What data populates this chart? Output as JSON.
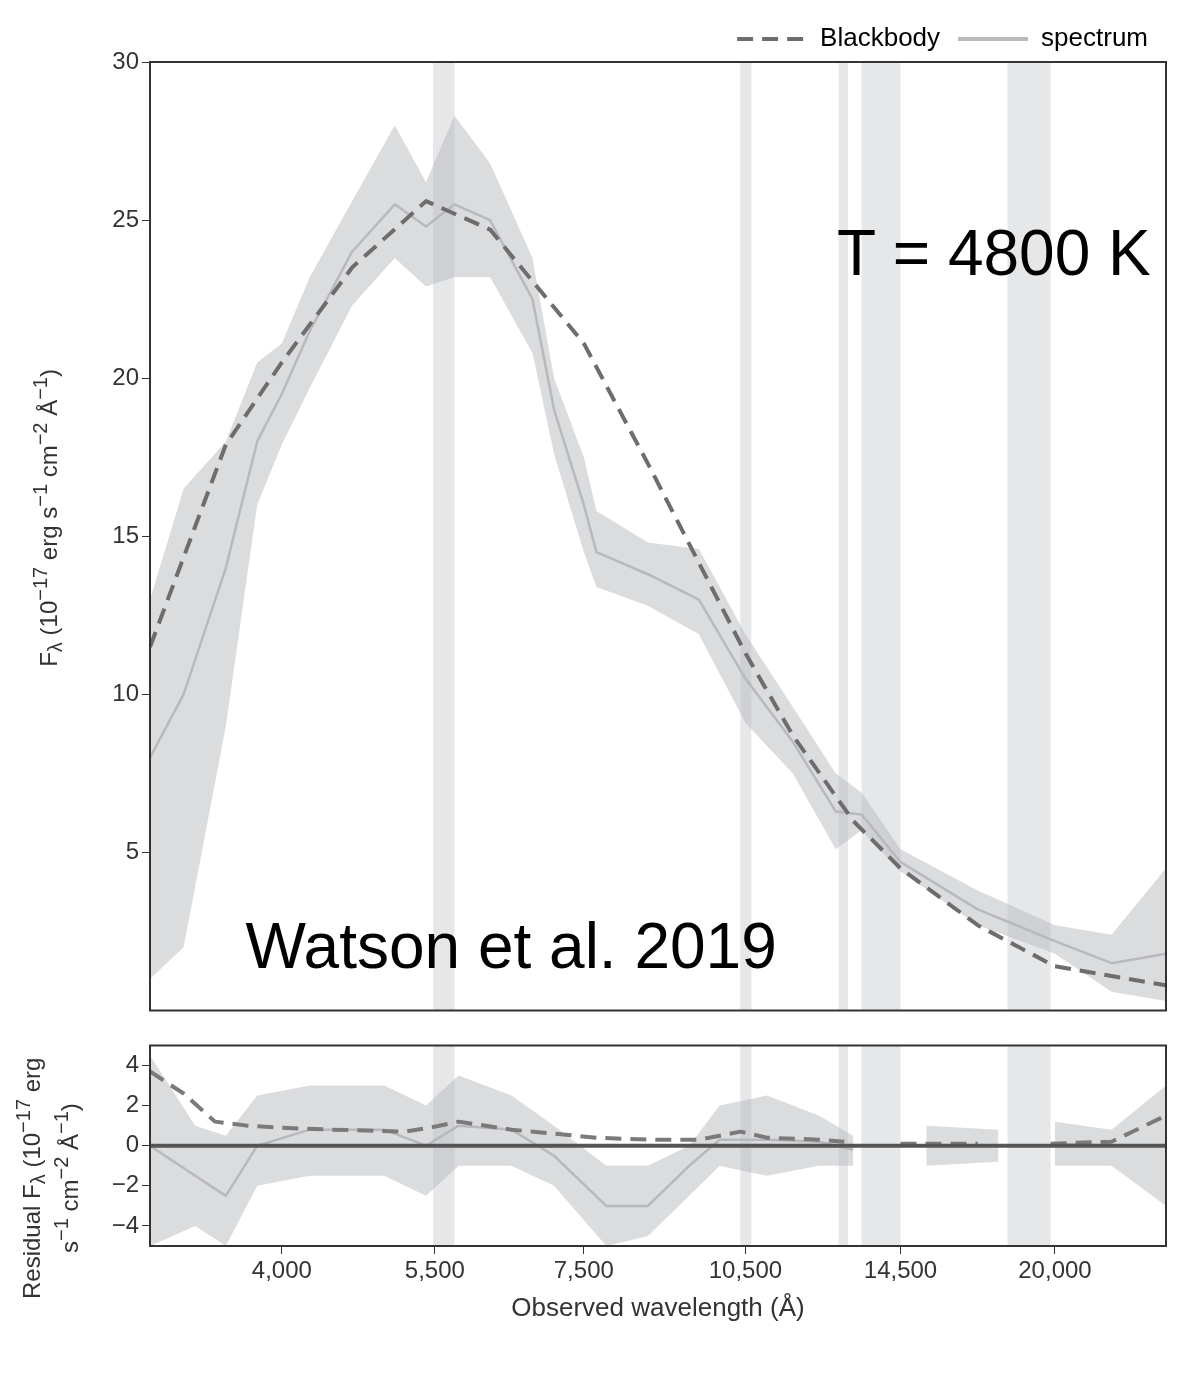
{
  "chart_data": [
    {
      "type": "line",
      "ylabel": "F$_{λ}$ (10$^{−17}$ erg s$^{−1}$ cm$^{−2}$ Å$^{−1}$)",
      "log": "x",
      "xlim": [
        3040,
        25200
      ],
      "ylim": [
        0,
        30
      ],
      "yticks": [
        5,
        10,
        15,
        20,
        25,
        30
      ],
      "tick_labels": "y",
      "grid": false,
      "legend": "top right",
      "marker": "none",
      "series": [
        {
          "name": "Blackbody",
          "color": "#6d6d6d",
          "line_style": "dashed",
          "x": [
            3040,
            3560,
            4000,
            4630,
            5400,
            6170,
            7500,
            8570,
            10500,
            11590,
            13140,
            14500,
            17030,
            20000,
            25200
          ],
          "values": [
            11.5,
            17.9,
            20.5,
            23.5,
            25.6,
            24.7,
            21.1,
            17.3,
            11.3,
            8.7,
            6.0,
            4.5,
            2.7,
            1.4,
            0.8
          ]
        },
        {
          "name": "spectrum",
          "color": "#b8b9bd",
          "line_style": "solid",
          "x": [
            3040,
            3260,
            3560,
            3800,
            4000,
            4240,
            4630,
            5060,
            5400,
            5730,
            6170,
            6740,
            7050,
            7500,
            7700,
            8570,
            9530,
            10500,
            11590,
            12670,
            13370,
            14500,
            17030,
            20000,
            22500,
            25200
          ],
          "values": [
            8,
            10,
            14,
            18,
            19.5,
            21.5,
            24,
            25.5,
            24.8,
            25.5,
            25,
            22.5,
            19,
            16,
            14.5,
            13.8,
            13,
            10.5,
            8.5,
            6.3,
            6.2,
            4.7,
            3.2,
            2.2,
            1.5,
            1.8
          ],
          "lower": [
            1,
            2,
            9,
            16,
            17.9,
            19.7,
            22.3,
            23.8,
            22.9,
            23.2,
            23.2,
            20.8,
            17.6,
            14.5,
            13.4,
            12.8,
            11.9,
            9.1,
            7.5,
            5.1,
            5.7,
            4.4,
            2.7,
            1.8,
            0.6,
            0.3
          ],
          "upper": [
            13,
            16.5,
            18,
            20.5,
            21.1,
            23.2,
            25.6,
            28,
            26.2,
            28.3,
            26.8,
            23.8,
            20,
            17.5,
            15.8,
            14.8,
            14.6,
            11.9,
            9.6,
            7.5,
            6.9,
            5.1,
            3.8,
            2.7,
            2.4,
            4.5
          ]
        }
      ],
      "bands": [
        {
          "axis": "x",
          "from": 5480,
          "to": 5730,
          "color": "#e6e7e9"
        },
        {
          "axis": "x",
          "from": 10390,
          "to": 10630,
          "color": "#e6e7e9"
        },
        {
          "axis": "x",
          "from": 12750,
          "to": 13000,
          "color": "#e6e7e9"
        },
        {
          "axis": "x",
          "from": 13370,
          "to": 14500,
          "color": "#e6e7e9"
        },
        {
          "axis": "x",
          "from": 18120,
          "to": 19820,
          "color": "#e6e7e9"
        }
      ],
      "annotations": [
        "T = 4800 K",
        "Watson et al. 2019"
      ]
    },
    {
      "type": "line",
      "xlabel": "Observed wavelength (Å)",
      "ylabel": "Residual F$_{λ}$ (10$^{−17}$ erg s$^{−1}$ cm$^{−2}$ Å$^{−1}$)",
      "log": "x",
      "xlim": [
        3040,
        25200
      ],
      "xticks": [
        {
          "value": 4000,
          "label": "4,000"
        },
        {
          "value": 5500,
          "label": "5,500"
        },
        {
          "value": 7500,
          "label": "7,500"
        },
        {
          "value": 10500,
          "label": "10,500"
        },
        {
          "value": 14500,
          "label": "14,500"
        },
        {
          "value": 20000,
          "label": "20,000"
        }
      ],
      "ylim": [
        -5,
        5
      ],
      "yticks": [
        {
          "value": -4,
          "label": "−4"
        },
        {
          "value": -2,
          "label": "−2"
        },
        0,
        2,
        4
      ],
      "grid": false,
      "marker": "none",
      "series": [
        {
          "color": "#7a7a7a",
          "line_style": "dashed",
          "x": [
            3040,
            3260,
            3480,
            3720,
            3970,
            4440,
            5170,
            5450,
            5780,
            6450,
            7050,
            7700,
            8570,
            9530,
            10390,
            10980,
            12230,
            12900,
            13370,
            14500,
            17030,
            18120,
            19820,
            22500,
            25200
          ],
          "values": [
            3.7,
            2.6,
            1.2,
            1.0,
            0.9,
            0.8,
            0.7,
            0.9,
            1.2,
            0.8,
            0.6,
            0.4,
            0.3,
            0.3,
            0.7,
            0.4,
            0.3,
            0.2,
            null,
            0.1,
            0.1,
            null,
            0.1,
            0.2,
            1.5
          ]
        },
        {
          "color": "#b8b9bd",
          "line_style": "solid",
          "x": [
            3040,
            3340,
            3560,
            3800,
            4240,
            4950,
            5400,
            5780,
            6450,
            7050,
            7860,
            8570,
            9340,
            9950,
            10980,
            12230,
            13140,
            13370,
            15300,
            17780,
            18120,
            20000,
            22500,
            25200
          ],
          "values": [
            0,
            -1.5,
            -2.5,
            0,
            0.8,
            0.8,
            0,
            1,
            0.8,
            -0.5,
            -3,
            -3,
            -1,
            0.3,
            0.3,
            0.2,
            -0.2,
            null,
            0,
            0,
            null,
            0.1,
            0,
            0
          ],
          "lower": [
            -5,
            -4,
            -5,
            -2,
            -1.5,
            -1.5,
            -2.5,
            -1,
            -1,
            -2,
            -5,
            -4.5,
            -2.5,
            -1,
            -1.5,
            -1,
            -1,
            null,
            -1,
            -0.8,
            null,
            -1,
            -1,
            -3
          ],
          "upper": [
            4.5,
            1,
            0.5,
            2.5,
            3,
            3,
            2,
            3.5,
            2.5,
            1,
            -1,
            -1,
            0,
            2,
            2.5,
            1.5,
            0.5,
            null,
            1,
            0.8,
            null,
            1.2,
            0.8,
            3
          ]
        }
      ],
      "bands": [
        {
          "axis": "x",
          "from": 5480,
          "to": 5730,
          "color": "#e6e7e9"
        },
        {
          "axis": "x",
          "from": 10390,
          "to": 10630,
          "color": "#e6e7e9"
        },
        {
          "axis": "x",
          "from": 12750,
          "to": 13000,
          "color": "#e6e7e9"
        },
        {
          "axis": "x",
          "from": 13370,
          "to": 14500,
          "color": "#e6e7e9"
        },
        {
          "axis": "x",
          "from": 18120,
          "to": 19820,
          "color": "#e6e7e9"
        }
      ],
      "ref_lines": [
        {
          "axis": "y",
          "value": 0,
          "color": "#555555",
          "line_style": "solid"
        }
      ]
    }
  ]
}
